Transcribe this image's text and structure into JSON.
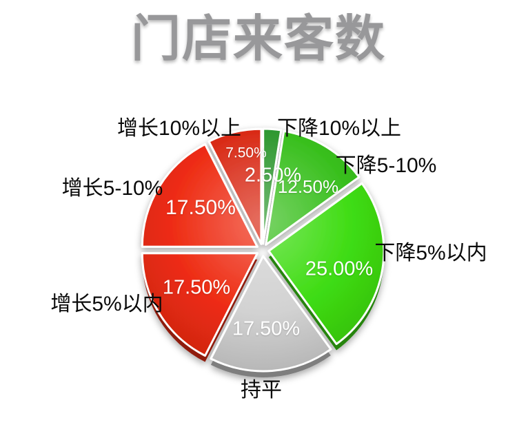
{
  "title": "门店来客数",
  "chart_data": {
    "type": "pie",
    "title": "门店来客数",
    "unit": "%",
    "direction": "clockwise",
    "start_angle_deg": 0,
    "legend_position": "none",
    "label_style": "category-outside-percent-inside",
    "exploded": true,
    "effect": "3d-gloss",
    "slices": [
      {
        "label": "下降10%以上",
        "value": 2.5,
        "display": "2.50%",
        "color": "#2f9830"
      },
      {
        "label": "下降5-10%",
        "value": 12.5,
        "display": "12.50%",
        "color": "#38bf1d"
      },
      {
        "label": "下降5%以内",
        "value": 25.0,
        "display": "25.00%",
        "color": "#3edc12"
      },
      {
        "label": "持平",
        "value": 17.5,
        "display": "17.50%",
        "color": "#d2d2d2"
      },
      {
        "label": "增长5%以内",
        "value": 17.5,
        "display": "17.50%",
        "color": "#ee2c13"
      },
      {
        "label": "增长5-10%",
        "value": 17.5,
        "display": "17.50%",
        "color": "#ee2c13"
      },
      {
        "label": "增长10%以上",
        "value": 7.5,
        "display": "7.50%",
        "color": "#d92b17"
      }
    ],
    "colors": {
      "decline_strong": "#2f9830",
      "decline_mid": "#38bf1d",
      "decline_light": "#3edc12",
      "flat": "#d2d2d2",
      "growth": "#ee2c13",
      "title_gray": "#98989a"
    }
  }
}
